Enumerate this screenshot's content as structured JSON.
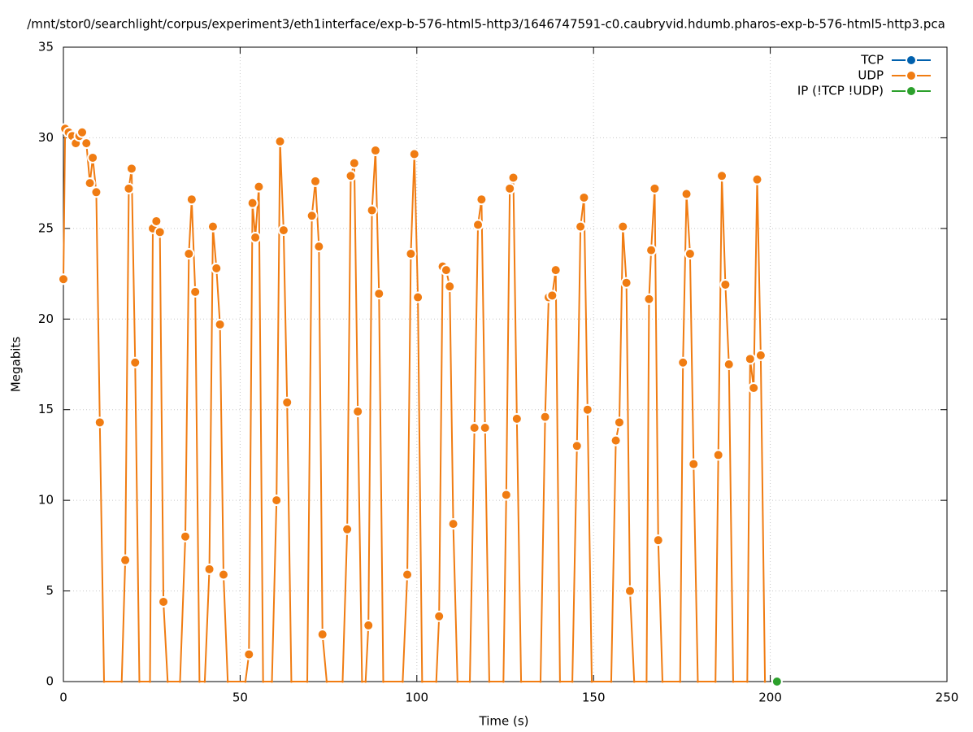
{
  "chart_data": {
    "type": "line",
    "title": "/mnt/stor0/searchlight/corpus/experiment3/eth1interface/exp-b-576-html5-http3/1646747591-c0.caubryvid.hdumb.pharos-exp-b-576-html5-http3.pca",
    "x_label": "Time (s)",
    "y_label": "Megabits",
    "xlim": [
      0,
      250
    ],
    "xticks": [
      0,
      50,
      100,
      150,
      200,
      250
    ],
    "ylim": [
      0,
      35
    ],
    "yticks": [
      0,
      5,
      10,
      15,
      20,
      25,
      30,
      35
    ],
    "grid": true,
    "legend": "top-right",
    "series": [
      {
        "name": "TCP",
        "color": "#0060ad",
        "x": [],
        "values": []
      },
      {
        "name": "UDP",
        "color": "#f07c12",
        "x": [
          0,
          0.5,
          1.5,
          2.5,
          3.5,
          4.5,
          5.3,
          6.5,
          7.5,
          8.3,
          9.3,
          10.3,
          11.5,
          16.5,
          17.5,
          18.5,
          19.3,
          20.3,
          21.5,
          24.5,
          25.3,
          26.3,
          27.3,
          28.3,
          29.5,
          33,
          34.5,
          35.5,
          36.3,
          37.3,
          38.5,
          40,
          41.3,
          42.3,
          43.3,
          44.3,
          45.3,
          46.5,
          51.5,
          52.5,
          53.5,
          54.3,
          55.3,
          56.5,
          59,
          60.3,
          61.3,
          62.3,
          63.3,
          64.5,
          69,
          70.3,
          71.3,
          72.3,
          73.3,
          74.5,
          79,
          80.3,
          81.3,
          82.3,
          83.3,
          84.5,
          85.5,
          86.3,
          87.3,
          88.3,
          89.3,
          90.5,
          96,
          97.3,
          98.3,
          99.3,
          100.3,
          101.5,
          105.5,
          106.3,
          107.3,
          108.3,
          109.3,
          110.3,
          111.5,
          115,
          116.3,
          117.3,
          118.3,
          119.3,
          120.5,
          124.5,
          125.3,
          126.3,
          127.3,
          128.3,
          129.5,
          135,
          136.3,
          137.3,
          138.3,
          139.3,
          140.5,
          144,
          145.3,
          146.3,
          147.3,
          148.3,
          149.5,
          155,
          156.3,
          157.3,
          158.3,
          159.3,
          160.3,
          161.5,
          165,
          165.7,
          166.3,
          167.3,
          168.3,
          169.5,
          174.5,
          175.3,
          176.3,
          177.3,
          178.3,
          179.5,
          184.5,
          185.3,
          186.3,
          187.3,
          188.3,
          189.5,
          193.5,
          194.3,
          195.3,
          196.3,
          197.3,
          198.5
        ],
        "values": [
          22.2,
          30.5,
          30.3,
          30.1,
          29.7,
          30.1,
          30.3,
          29.7,
          27.5,
          28.9,
          27.0,
          14.3,
          0,
          0,
          6.7,
          27.2,
          28.3,
          17.6,
          0,
          0,
          25.0,
          25.4,
          24.8,
          4.4,
          0,
          0,
          8.0,
          23.6,
          26.6,
          21.5,
          0,
          0,
          6.2,
          25.1,
          22.8,
          19.7,
          5.9,
          0,
          0,
          1.5,
          26.4,
          24.5,
          27.3,
          0,
          0,
          10.0,
          29.8,
          24.9,
          15.4,
          0,
          0,
          25.7,
          27.6,
          24.0,
          2.6,
          0,
          0,
          8.4,
          27.9,
          28.6,
          14.9,
          0,
          0,
          3.1,
          26.0,
          29.3,
          21.4,
          0,
          0,
          5.9,
          23.6,
          29.1,
          21.2,
          0,
          0,
          3.6,
          22.9,
          22.7,
          21.8,
          8.7,
          0,
          0,
          14.0,
          25.2,
          26.6,
          14.0,
          0,
          0,
          10.3,
          27.2,
          27.8,
          14.5,
          0,
          0,
          14.6,
          21.2,
          21.3,
          22.7,
          0,
          0,
          13.0,
          25.1,
          26.7,
          15.0,
          0,
          0,
          13.3,
          14.3,
          25.1,
          22.0,
          5.0,
          0,
          0,
          21.1,
          23.8,
          27.2,
          7.8,
          0,
          0,
          17.6,
          26.9,
          23.6,
          12.0,
          0,
          0,
          12.5,
          27.9,
          21.9,
          17.5,
          0,
          0,
          17.8,
          16.2,
          27.7,
          18.0,
          0
        ]
      },
      {
        "name": "IP (!TCP  !UDP)",
        "color": "#2ca02c",
        "x": [
          201.9
        ],
        "values": [
          0
        ]
      }
    ]
  }
}
